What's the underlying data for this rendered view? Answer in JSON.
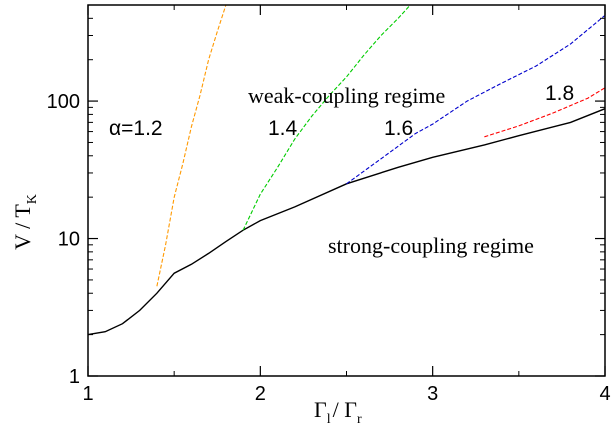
{
  "chart_data": {
    "type": "line",
    "x_axis": {
      "label_main": "Γ",
      "label_sub1": "l",
      "label_sep": "/ Γ",
      "label_sub2": "r",
      "range": [
        1,
        4
      ],
      "ticks": [
        "1",
        "2",
        "3",
        "4"
      ],
      "scale": "linear"
    },
    "y_axis": {
      "label_main": "V / T",
      "label_sub": "K",
      "range": [
        1,
        500
      ],
      "ticks": [
        "1",
        "10",
        "100"
      ],
      "scale": "log"
    },
    "annotations": {
      "weak": "weak-coupling regime",
      "strong": "strong-coupling regime",
      "a12": "α=1.2",
      "a14": "1.4",
      "a16": "1.6",
      "a18": "1.8"
    },
    "series": [
      {
        "id": "boundary",
        "style": "solid",
        "color": "#000000",
        "points": [
          [
            1.0,
            2.0
          ],
          [
            1.1,
            2.1
          ],
          [
            1.2,
            2.4
          ],
          [
            1.3,
            3.0
          ],
          [
            1.4,
            4.0
          ],
          [
            1.5,
            5.6
          ],
          [
            1.6,
            6.5
          ],
          [
            1.7,
            7.8
          ],
          [
            1.8,
            9.5
          ],
          [
            1.9,
            11.5
          ],
          [
            2.0,
            13.5
          ],
          [
            2.2,
            17.0
          ],
          [
            2.5,
            25.0
          ],
          [
            2.8,
            33.0
          ],
          [
            3.0,
            39.0
          ],
          [
            3.3,
            48.0
          ],
          [
            3.5,
            56.0
          ],
          [
            3.8,
            70.0
          ],
          [
            4.0,
            88.0
          ]
        ]
      },
      {
        "id": "alpha-1.2",
        "style": "dashed",
        "color": "#ff9900",
        "points": [
          [
            1.4,
            4.5
          ],
          [
            1.45,
            9.0
          ],
          [
            1.5,
            20.0
          ],
          [
            1.55,
            35.0
          ],
          [
            1.6,
            65.0
          ],
          [
            1.65,
            110.0
          ],
          [
            1.7,
            200.0
          ],
          [
            1.75,
            320.0
          ],
          [
            1.8,
            500.0
          ]
        ]
      },
      {
        "id": "alpha-1.4",
        "style": "dashed",
        "color": "#00cc00",
        "points": [
          [
            1.9,
            11.5
          ],
          [
            2.0,
            21.0
          ],
          [
            2.1,
            33.0
          ],
          [
            2.2,
            53.0
          ],
          [
            2.3,
            78.0
          ],
          [
            2.4,
            110.0
          ],
          [
            2.5,
            150.0
          ],
          [
            2.6,
            215.0
          ],
          [
            2.7,
            300.0
          ],
          [
            2.8,
            400.0
          ],
          [
            2.87,
            500.0
          ]
        ]
      },
      {
        "id": "alpha-1.6",
        "style": "dashed",
        "color": "#0000cc",
        "points": [
          [
            2.5,
            25.0
          ],
          [
            2.7,
            38.0
          ],
          [
            2.9,
            58.0
          ],
          [
            3.0,
            68.0
          ],
          [
            3.2,
            100.0
          ],
          [
            3.4,
            135.0
          ],
          [
            3.6,
            180.0
          ],
          [
            3.8,
            260.0
          ],
          [
            4.0,
            420.0
          ]
        ]
      },
      {
        "id": "alpha-1.8",
        "style": "dashed",
        "color": "#ff0000",
        "points": [
          [
            3.3,
            55.0
          ],
          [
            3.5,
            66.0
          ],
          [
            3.7,
            82.0
          ],
          [
            3.9,
            105.0
          ],
          [
            4.0,
            125.0
          ]
        ]
      }
    ]
  }
}
